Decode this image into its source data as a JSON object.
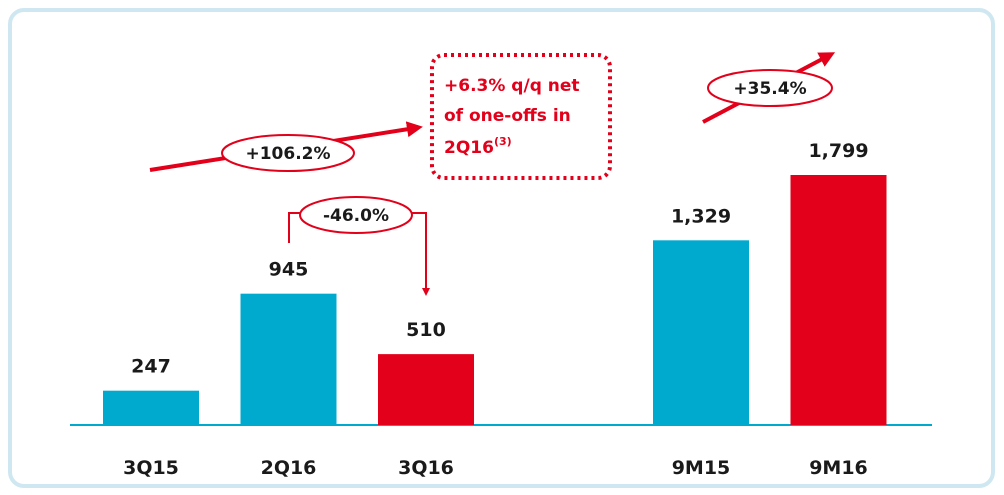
{
  "chart_data": {
    "type": "bar",
    "categories": [
      "3Q15",
      "2Q16",
      "3Q16",
      null,
      "9M15",
      "9M16"
    ],
    "values": [
      247,
      945,
      510,
      null,
      1329,
      1799
    ],
    "value_labels": [
      "247",
      "945",
      "510",
      null,
      "1,329",
      "1,799"
    ],
    "colors": [
      "#00a9ce",
      "#00a9ce",
      "#e2001a",
      null,
      "#00a9ce",
      "#e2001a"
    ],
    "annotations": {
      "growth_3q": "+106.2%",
      "change_qoq": "-46.0%",
      "growth_9m": "+35.4%",
      "note_lines": [
        "+6.3% q/q net",
        "of one-offs in",
        "2Q16"
      ],
      "note_superscript": "(3)"
    }
  }
}
